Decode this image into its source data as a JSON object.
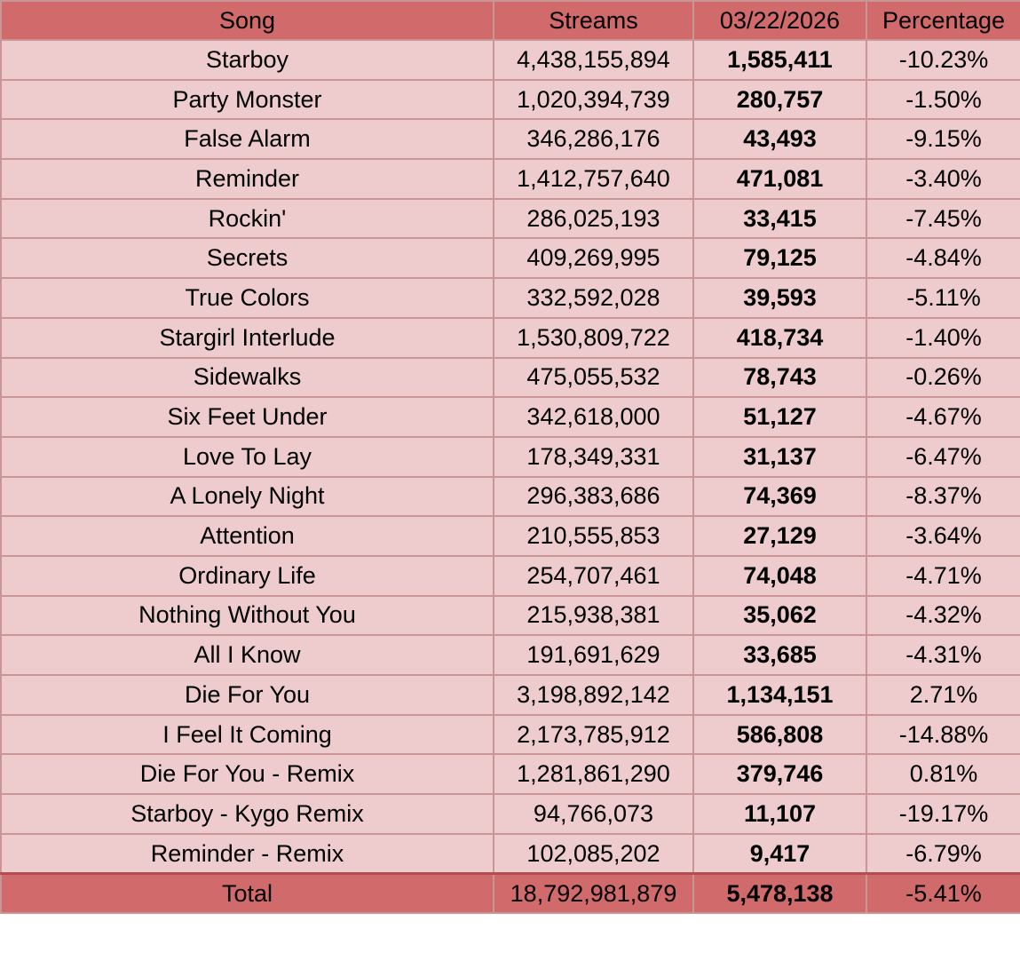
{
  "table": {
    "headers": {
      "song": "Song",
      "streams": "Streams",
      "date": "03/22/2026",
      "percentage": "Percentage"
    },
    "rows": [
      {
        "song": "Starboy",
        "streams": "4,438,155,894",
        "daily": "1,585,411",
        "pct": "-10.23%"
      },
      {
        "song": "Party Monster",
        "streams": "1,020,394,739",
        "daily": "280,757",
        "pct": "-1.50%"
      },
      {
        "song": "False Alarm",
        "streams": "346,286,176",
        "daily": "43,493",
        "pct": "-9.15%"
      },
      {
        "song": "Reminder",
        "streams": "1,412,757,640",
        "daily": "471,081",
        "pct": "-3.40%"
      },
      {
        "song": "Rockin'",
        "streams": "286,025,193",
        "daily": "33,415",
        "pct": "-7.45%"
      },
      {
        "song": "Secrets",
        "streams": "409,269,995",
        "daily": "79,125",
        "pct": "-4.84%"
      },
      {
        "song": "True Colors",
        "streams": "332,592,028",
        "daily": "39,593",
        "pct": "-5.11%"
      },
      {
        "song": "Stargirl Interlude",
        "streams": "1,530,809,722",
        "daily": "418,734",
        "pct": "-1.40%"
      },
      {
        "song": "Sidewalks",
        "streams": "475,055,532",
        "daily": "78,743",
        "pct": "-0.26%"
      },
      {
        "song": "Six Feet Under",
        "streams": "342,618,000",
        "daily": "51,127",
        "pct": "-4.67%"
      },
      {
        "song": "Love To Lay",
        "streams": "178,349,331",
        "daily": "31,137",
        "pct": "-6.47%"
      },
      {
        "song": "A Lonely Night",
        "streams": "296,383,686",
        "daily": "74,369",
        "pct": "-8.37%"
      },
      {
        "song": "Attention",
        "streams": "210,555,853",
        "daily": "27,129",
        "pct": "-3.64%"
      },
      {
        "song": "Ordinary Life",
        "streams": "254,707,461",
        "daily": "74,048",
        "pct": "-4.71%"
      },
      {
        "song": "Nothing Without You",
        "streams": "215,938,381",
        "daily": "35,062",
        "pct": "-4.32%"
      },
      {
        "song": "All I Know",
        "streams": "191,691,629",
        "daily": "33,685",
        "pct": "-4.31%"
      },
      {
        "song": "Die For You",
        "streams": "3,198,892,142",
        "daily": "1,134,151",
        "pct": "2.71%"
      },
      {
        "song": "I Feel It Coming",
        "streams": "2,173,785,912",
        "daily": "586,808",
        "pct": "-14.88%"
      },
      {
        "song": "Die For You - Remix",
        "streams": "1,281,861,290",
        "daily": "379,746",
        "pct": "0.81%"
      },
      {
        "song": "Starboy - Kygo Remix",
        "streams": "94,766,073",
        "daily": "11,107",
        "pct": "-19.17%"
      },
      {
        "song": "Reminder - Remix",
        "streams": "102,085,202",
        "daily": "9,417",
        "pct": "-6.79%"
      }
    ],
    "total": {
      "label": "Total",
      "streams": "18,792,981,879",
      "daily": "5,478,138",
      "pct": "-5.41%"
    }
  },
  "colors": {
    "header_bg": "#d16a6a",
    "row_bg": "#eecbcd",
    "border": "#c99597"
  }
}
